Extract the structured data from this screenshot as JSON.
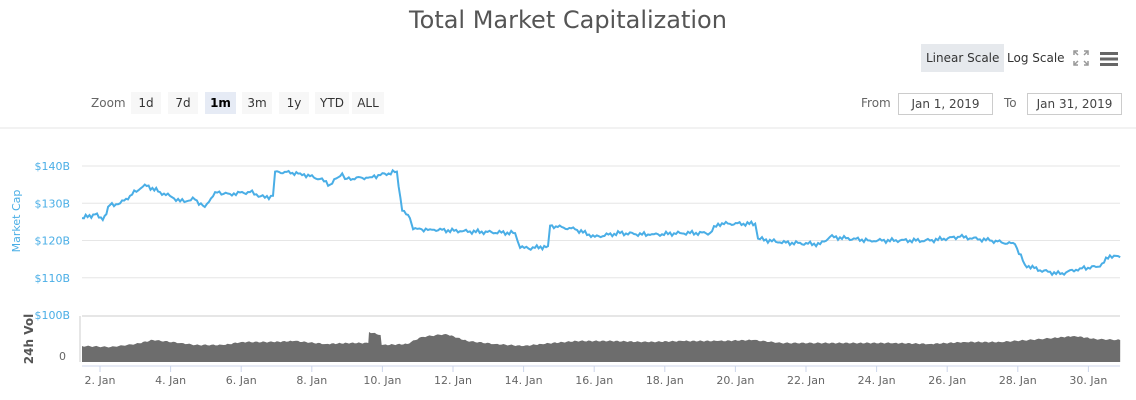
{
  "chart_data": {
    "type": "line",
    "title": "Total Market Capitalization",
    "ylabel": "Market Cap",
    "y_ticks": [
      "$100B",
      "$110B",
      "$120B",
      "$130B",
      "$140B"
    ],
    "ylim": [
      100,
      140
    ],
    "y_unit": "billion USD",
    "x_ticks": [
      "2. Jan",
      "4. Jan",
      "6. Jan",
      "8. Jan",
      "10. Jan",
      "12. Jan",
      "14. Jan",
      "16. Jan",
      "18. Jan",
      "20. Jan",
      "22. Jan",
      "24. Jan",
      "26. Jan",
      "28. Jan",
      "30. Jan"
    ],
    "x_tick_days": [
      2,
      4,
      6,
      8,
      10,
      12,
      14,
      16,
      18,
      20,
      22,
      24,
      26,
      28,
      30
    ],
    "xlim_days": [
      1.49,
      30.9
    ],
    "grid": true,
    "line_color": "#4aaee6",
    "series": [
      {
        "points": [
          [
            1.49,
            126
          ],
          [
            1.86,
            127
          ],
          [
            2.08,
            125.5
          ],
          [
            2.28,
            129.5
          ],
          [
            2.57,
            130
          ],
          [
            2.85,
            132
          ],
          [
            3.27,
            135
          ],
          [
            3.7,
            133
          ],
          [
            3.98,
            132
          ],
          [
            4.27,
            130.5
          ],
          [
            4.69,
            131
          ],
          [
            4.97,
            129
          ],
          [
            5.26,
            133
          ],
          [
            5.68,
            132.5
          ],
          [
            6.25,
            133
          ],
          [
            6.67,
            131.5
          ],
          [
            6.9,
            132
          ],
          [
            6.96,
            138.5
          ],
          [
            7.67,
            138
          ],
          [
            8.23,
            136.5
          ],
          [
            8.52,
            135
          ],
          [
            8.86,
            138
          ],
          [
            8.94,
            136.5
          ],
          [
            9.65,
            137
          ],
          [
            10.41,
            138.5
          ],
          [
            10.56,
            128
          ],
          [
            10.78,
            126
          ],
          [
            10.87,
            123
          ],
          [
            11.35,
            123
          ],
          [
            12.2,
            122.5
          ],
          [
            13.76,
            122
          ],
          [
            13.9,
            118
          ],
          [
            14.32,
            118
          ],
          [
            14.69,
            118.5
          ],
          [
            14.75,
            124
          ],
          [
            15.46,
            123
          ],
          [
            16.02,
            121
          ],
          [
            16.73,
            122
          ],
          [
            17.58,
            121.5
          ],
          [
            18.43,
            122
          ],
          [
            19.28,
            122
          ],
          [
            19.51,
            124.5
          ],
          [
            20.56,
            124.5
          ],
          [
            20.64,
            120.5
          ],
          [
            21.26,
            119.5
          ],
          [
            22.4,
            119
          ],
          [
            22.68,
            121
          ],
          [
            23.81,
            120
          ],
          [
            24.66,
            120
          ],
          [
            25.51,
            120
          ],
          [
            26.36,
            121
          ],
          [
            27.21,
            120
          ],
          [
            27.92,
            119
          ],
          [
            28.2,
            113.5
          ],
          [
            28.63,
            112
          ],
          [
            29.2,
            111
          ],
          [
            29.76,
            112.5
          ],
          [
            30.33,
            113
          ],
          [
            30.61,
            116
          ],
          [
            30.9,
            115.5
          ]
        ]
      }
    ],
    "volume": {
      "label": "24h Vol",
      "y_tick": "0",
      "color": "#6d6d6d",
      "relative_values": [
        [
          1.49,
          16
        ],
        [
          2.3,
          15
        ],
        [
          3,
          18
        ],
        [
          3.5,
          22
        ],
        [
          4.3,
          19
        ],
        [
          4.7,
          17
        ],
        [
          5.5,
          17
        ],
        [
          6,
          20
        ],
        [
          6.9,
          20
        ],
        [
          7.5,
          21
        ],
        [
          8.4,
          18
        ],
        [
          9.0,
          19
        ],
        [
          9.6,
          19
        ],
        [
          9.62,
          30
        ],
        [
          9.95,
          27
        ],
        [
          9.98,
          17
        ],
        [
          10.7,
          18
        ],
        [
          11.1,
          25
        ],
        [
          11.8,
          28
        ],
        [
          12.4,
          21
        ],
        [
          13.2,
          18
        ],
        [
          14,
          16
        ],
        [
          14.5,
          18
        ],
        [
          15.5,
          21
        ],
        [
          16.5,
          21
        ],
        [
          17.5,
          20
        ],
        [
          18.5,
          21
        ],
        [
          19.5,
          21
        ],
        [
          20.5,
          22
        ],
        [
          21.3,
          19
        ],
        [
          22.5,
          19
        ],
        [
          23.5,
          19
        ],
        [
          24.5,
          19
        ],
        [
          25.5,
          18
        ],
        [
          26.5,
          20
        ],
        [
          27.5,
          20
        ],
        [
          28.3,
          22
        ],
        [
          29,
          24
        ],
        [
          29.6,
          26
        ],
        [
          30.2,
          23
        ],
        [
          30.9,
          22
        ]
      ]
    }
  },
  "toolbar": {
    "zoom_label": "Zoom",
    "zoom_buttons": [
      "1d",
      "7d",
      "1m",
      "3m",
      "1y",
      "YTD",
      "ALL"
    ],
    "selected_zoom": "1m",
    "from_label": "From",
    "from_value": "Jan 1, 2019",
    "to_label": "To",
    "to_value": "Jan 31, 2019",
    "linear_scale": "Linear Scale",
    "log_scale": "Log Scale",
    "selected_scale": "Linear Scale",
    "fullscreen_icon": "expand-icon",
    "menu_icon": "hamburger-menu-icon"
  }
}
